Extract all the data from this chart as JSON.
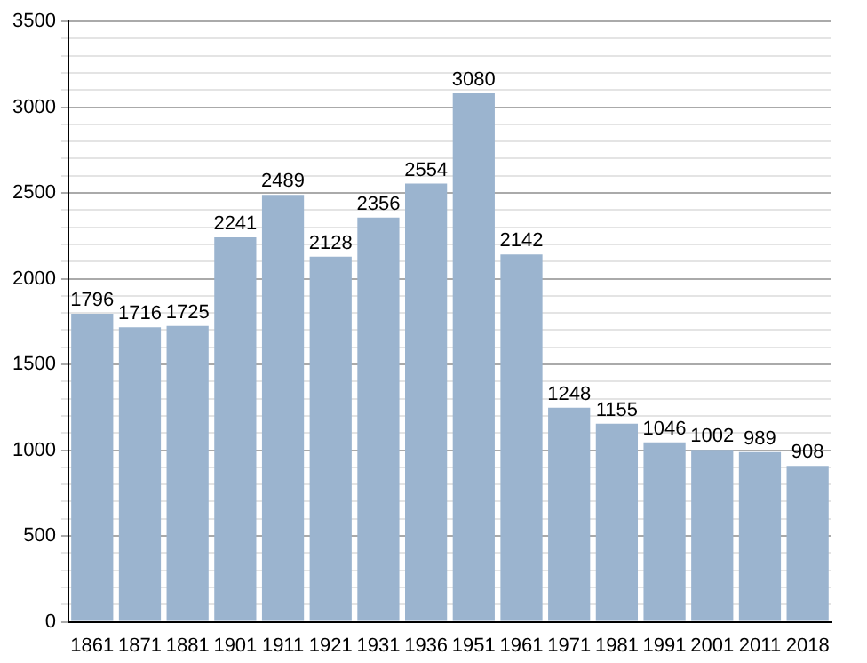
{
  "chart_data": {
    "type": "bar",
    "categories": [
      "1861",
      "1871",
      "1881",
      "1901",
      "1911",
      "1921",
      "1931",
      "1936",
      "1951",
      "1961",
      "1971",
      "1981",
      "1991",
      "2001",
      "2011",
      "2018"
    ],
    "values": [
      1796,
      1716,
      1725,
      2241,
      2489,
      2128,
      2356,
      2554,
      3080,
      2142,
      1248,
      1155,
      1046,
      1002,
      989,
      908
    ],
    "color": "#9bb4cf",
    "ylim": [
      0,
      3500
    ],
    "yticks": [
      0,
      {
        "value": 100,
        "label": null
      },
      {
        "value": 200,
        "label": null
      },
      {
        "value": 300,
        "label": null
      },
      {
        "value": 400,
        "label": null
      },
      500,
      {
        "value": 600,
        "label": null
      },
      {
        "value": 700,
        "label": null
      },
      {
        "value": 800,
        "label": null
      },
      {
        "value": 900,
        "label": null
      },
      1000,
      {
        "value": 1100,
        "label": null
      },
      {
        "value": 1200,
        "label": null
      },
      {
        "value": 1300,
        "label": null
      },
      {
        "value": 1400,
        "label": null
      },
      1500,
      {
        "value": 1600,
        "label": null
      },
      {
        "value": 1700,
        "label": null
      },
      {
        "value": 1800,
        "label": null
      },
      {
        "value": 1900,
        "label": null
      },
      2000,
      {
        "value": 2100,
        "label": null
      },
      {
        "value": 2200,
        "label": null
      },
      {
        "value": 2300,
        "label": null
      },
      {
        "value": 2400,
        "label": null
      },
      2500,
      {
        "value": 2600,
        "label": null
      },
      {
        "value": 2700,
        "label": null
      },
      {
        "value": 2800,
        "label": null
      },
      {
        "value": 2900,
        "label": null
      },
      3000,
      {
        "value": 3100,
        "label": null
      },
      {
        "value": 3200,
        "label": null
      },
      {
        "value": 3300,
        "label": null
      },
      {
        "value": 3400,
        "label": null
      },
      3500
    ],
    "grid": "y",
    "data_labels": true
  }
}
